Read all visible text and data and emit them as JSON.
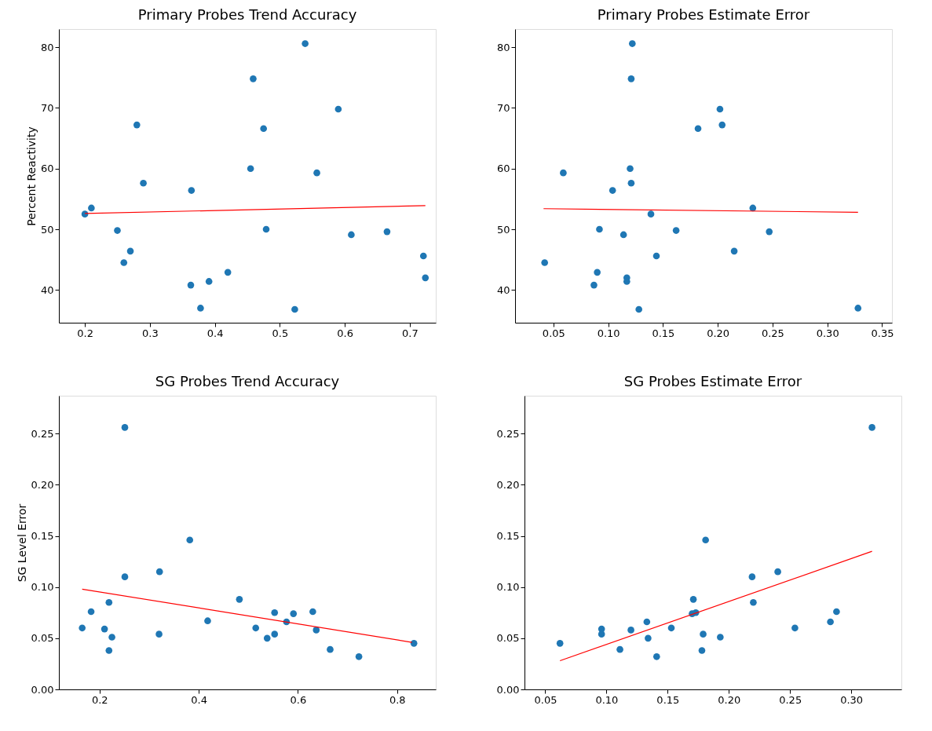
{
  "chart_data": [
    {
      "type": "scatter",
      "title": "Primary Probes Trend Accuracy",
      "ylabel": "Percent Reactivity",
      "xlim": [
        0.16,
        0.74
      ],
      "ylim": [
        34.6,
        83
      ],
      "xticks": [
        {
          "value": 0.2,
          "label": "0.2"
        },
        {
          "value": 0.3,
          "label": "0.3"
        },
        {
          "value": 0.4,
          "label": "0.4"
        },
        {
          "value": 0.5,
          "label": "0.5"
        },
        {
          "value": 0.6,
          "label": "0.6"
        },
        {
          "value": 0.7,
          "label": "0.7"
        }
      ],
      "yticks": [
        40,
        50,
        60,
        70,
        80
      ],
      "grid": false,
      "series": [
        {
          "color": "#1f77b4",
          "marker": "circle",
          "x": [
            0.2,
            0.21,
            0.25,
            0.26,
            0.27,
            0.28,
            0.29,
            0.364,
            0.363,
            0.378,
            0.391,
            0.42,
            0.455,
            0.459,
            0.475,
            0.479,
            0.523,
            0.539,
            0.557,
            0.59,
            0.61,
            0.665,
            0.721,
            0.724
          ],
          "values": [
            52.5,
            53.5,
            49.8,
            44.5,
            46.4,
            67.2,
            57.6,
            56.4,
            40.8,
            37,
            41.4,
            42.9,
            60,
            74.8,
            66.6,
            50,
            36.8,
            80.6,
            59.3,
            69.8,
            49.1,
            49.6,
            45.6,
            42
          ]
        },
        {
          "type": "line",
          "color": "#ff0000",
          "line_style": "solid",
          "marker": "none",
          "x": [
            0.2,
            0.724
          ],
          "values": [
            52.6,
            53.9
          ]
        }
      ]
    },
    {
      "type": "scatter",
      "title": "Primary Probes Estimate Error",
      "xlim": [
        0.015,
        0.359
      ],
      "ylim": [
        34.6,
        83
      ],
      "xticks": [
        {
          "value": 0.05,
          "label": "0.05"
        },
        {
          "value": 0.1,
          "label": "0.10"
        },
        {
          "value": 0.15,
          "label": "0.15"
        },
        {
          "value": 0.2,
          "label": "0.20"
        },
        {
          "value": 0.25,
          "label": "0.25"
        },
        {
          "value": 0.3,
          "label": "0.30"
        },
        {
          "value": 0.35,
          "label": "0.35"
        }
      ],
      "yticks": [
        40,
        50,
        60,
        70,
        80
      ],
      "grid": false,
      "series": [
        {
          "color": "#1f77b4",
          "marker": "circle",
          "x": [
            0.042,
            0.059,
            0.087,
            0.09,
            0.092,
            0.104,
            0.114,
            0.117,
            0.117,
            0.12,
            0.121,
            0.121,
            0.122,
            0.128,
            0.139,
            0.144,
            0.162,
            0.182,
            0.202,
            0.204,
            0.215,
            0.232,
            0.247,
            0.328
          ],
          "values": [
            44.5,
            59.3,
            40.8,
            42.9,
            50,
            56.4,
            49.1,
            42,
            41.4,
            60,
            57.6,
            74.8,
            80.6,
            36.8,
            52.5,
            45.6,
            49.8,
            66.6,
            69.8,
            67.2,
            46.4,
            53.5,
            49.6,
            37
          ]
        },
        {
          "type": "line",
          "color": "#ff0000",
          "line_style": "solid",
          "marker": "none",
          "x": [
            0.041,
            0.328
          ],
          "values": [
            53.4,
            52.8
          ]
        }
      ]
    },
    {
      "type": "scatter",
      "title": "SG Probes Trend Accuracy",
      "ylabel": "SG Level Error",
      "xlim": [
        0.118,
        0.878
      ],
      "ylim": [
        0,
        0.287
      ],
      "xticks": [
        {
          "value": 0.2,
          "label": "0.2"
        },
        {
          "value": 0.4,
          "label": "0.4"
        },
        {
          "value": 0.6,
          "label": "0.6"
        },
        {
          "value": 0.8,
          "label": "0.8"
        }
      ],
      "yticks": [
        {
          "value": 0,
          "label": "0.00"
        },
        {
          "value": 0.05,
          "label": "0.05"
        },
        {
          "value": 0.1,
          "label": "0.10"
        },
        {
          "value": 0.15,
          "label": "0.15"
        },
        {
          "value": 0.2,
          "label": "0.20"
        },
        {
          "value": 0.25,
          "label": "0.25"
        }
      ],
      "grid": false,
      "series": [
        {
          "color": "#1f77b4",
          "marker": "circle",
          "x": [
            0.165,
            0.183,
            0.21,
            0.219,
            0.219,
            0.225,
            0.251,
            0.251,
            0.32,
            0.321,
            0.382,
            0.418,
            0.482,
            0.515,
            0.538,
            0.553,
            0.553,
            0.577,
            0.591,
            0.63,
            0.637,
            0.665,
            0.723,
            0.834
          ],
          "values": [
            0.06,
            0.076,
            0.059,
            0.085,
            0.038,
            0.051,
            0.256,
            0.11,
            0.054,
            0.115,
            0.146,
            0.067,
            0.088,
            0.06,
            0.05,
            0.075,
            0.054,
            0.066,
            0.074,
            0.076,
            0.058,
            0.039,
            0.032,
            0.045
          ]
        },
        {
          "type": "line",
          "color": "#ff0000",
          "line_style": "solid",
          "marker": "none",
          "x": [
            0.165,
            0.83
          ],
          "values": [
            0.098,
            0.046
          ]
        }
      ]
    },
    {
      "type": "scatter",
      "title": "SG Probes Estimate Error",
      "xlim": [
        0.033,
        0.341
      ],
      "ylim": [
        0,
        0.287
      ],
      "xticks": [
        {
          "value": 0.05,
          "label": "0.05"
        },
        {
          "value": 0.1,
          "label": "0.10"
        },
        {
          "value": 0.15,
          "label": "0.15"
        },
        {
          "value": 0.2,
          "label": "0.20"
        },
        {
          "value": 0.25,
          "label": "0.25"
        },
        {
          "value": 0.3,
          "label": "0.30"
        }
      ],
      "yticks": [
        {
          "value": 0,
          "label": "0.00"
        },
        {
          "value": 0.05,
          "label": "0.05"
        },
        {
          "value": 0.1,
          "label": "0.10"
        },
        {
          "value": 0.15,
          "label": "0.15"
        },
        {
          "value": 0.2,
          "label": "0.20"
        },
        {
          "value": 0.25,
          "label": "0.25"
        }
      ],
      "grid": false,
      "series": [
        {
          "color": "#1f77b4",
          "marker": "circle",
          "x": [
            0.062,
            0.096,
            0.096,
            0.111,
            0.12,
            0.133,
            0.134,
            0.141,
            0.153,
            0.17,
            0.171,
            0.173,
            0.178,
            0.179,
            0.181,
            0.193,
            0.219,
            0.22,
            0.24,
            0.254,
            0.283,
            0.288,
            0.317
          ],
          "values": [
            0.045,
            0.059,
            0.054,
            0.039,
            0.058,
            0.066,
            0.05,
            0.032,
            0.06,
            0.074,
            0.088,
            0.075,
            0.038,
            0.054,
            0.146,
            0.051,
            0.11,
            0.085,
            0.115,
            0.06,
            0.066,
            0.076,
            0.256
          ]
        },
        {
          "type": "line",
          "color": "#ff0000",
          "line_style": "solid",
          "marker": "none",
          "x": [
            0.062,
            0.317
          ],
          "values": [
            0.028,
            0.135
          ]
        }
      ]
    }
  ]
}
